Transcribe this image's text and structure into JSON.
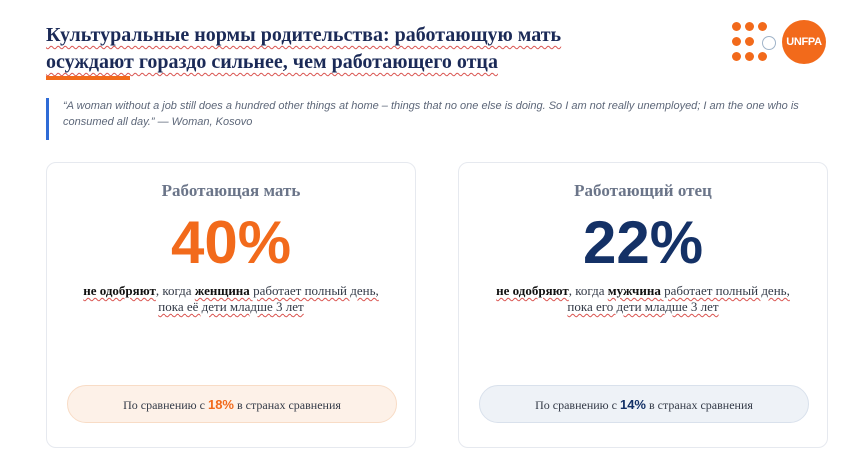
{
  "header": {
    "title_line1": "Культуральные нормы родительства: работающую мать",
    "title_line2": "осуждают гораздо сильнее, чем работающего отца"
  },
  "logo": {
    "text": "UNFPA"
  },
  "quote": {
    "text": "“A woman without a job still does a hundred other things at home – things that no one else is doing. So I am not really unemployed; I am the one who is consumed all day.” — Woman, Kosovo"
  },
  "cards": [
    {
      "heading": "Работающая мать",
      "percent": "40%",
      "desc_part1": "не одобряют",
      "desc_part2": ", когда ",
      "desc_part3": "женщина",
      "desc_part4": " работает  полный  день,",
      "desc_line2": "пока её дети младше 3 лет",
      "pill_prefix": "По сравнению с ",
      "pill_value": "18%",
      "pill_suffix": " в странах сравнения"
    },
    {
      "heading": "Работающий отец",
      "percent": "22%",
      "desc_part1": "не одобряют",
      "desc_part2": ", когда ",
      "desc_part3": "мужчина",
      "desc_part4": " работает  полный  день,",
      "desc_line2": "пока его дети младше 3 лет",
      "pill_prefix": "По сравнению с ",
      "pill_value": "14%",
      "pill_suffix": " в странах сравнения"
    }
  ],
  "colors": {
    "accent_orange": "#f26a1b",
    "navy": "#143166",
    "quote_bar": "#2f6bd6"
  }
}
